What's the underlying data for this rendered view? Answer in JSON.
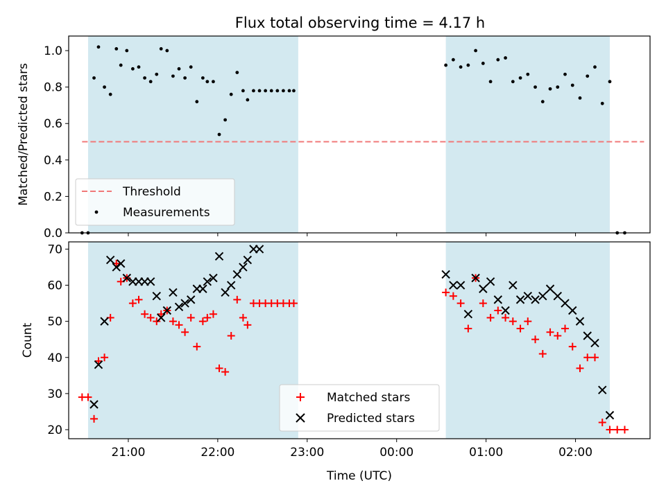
{
  "chart_data": [
    {
      "type": "scatter",
      "title": "Flux total observing time = 4.17 h",
      "ylabel": "Matched/Predicted stars",
      "xlabel": "",
      "xlim": [
        "20:20",
        "02:50"
      ],
      "ylim": [
        0,
        1.08
      ],
      "yticks": [
        0.0,
        0.2,
        0.4,
        0.6,
        0.8,
        1.0
      ],
      "ytick_labels": [
        "0.0",
        "0.2",
        "0.4",
        "0.6",
        "0.8",
        "1.0"
      ],
      "shaded_intervals": [
        [
          "20:33",
          "22:54"
        ],
        [
          "00:33",
          "02:23"
        ]
      ],
      "shade_color": "#d3e9f0",
      "threshold": {
        "name": "Threshold",
        "value": 0.5,
        "x_range": [
          "20:29",
          "02:46"
        ],
        "color": "#f07878"
      },
      "legend_position": "lower left",
      "series": [
        {
          "name": "Measurements",
          "color": "#000000",
          "x": [
            "20:29",
            "20:33",
            "20:37",
            "20:40",
            "20:44",
            "20:48",
            "20:52",
            "20:55",
            "20:59",
            "21:03",
            "21:07",
            "21:11",
            "21:15",
            "21:19",
            "21:22",
            "21:26",
            "21:30",
            "21:34",
            "21:38",
            "21:42",
            "21:46",
            "21:50",
            "21:53",
            "21:57",
            "22:01",
            "22:05",
            "22:09",
            "22:13",
            "22:17",
            "22:20",
            "22:24",
            "22:28",
            "22:32",
            "22:36",
            "22:40",
            "22:44",
            "22:48",
            "22:51",
            "00:33",
            "00:38",
            "00:43",
            "00:48",
            "00:53",
            "00:58",
            "01:03",
            "01:08",
            "01:13",
            "01:18",
            "01:23",
            "01:28",
            "01:33",
            "01:38",
            "01:43",
            "01:48",
            "01:53",
            "01:58",
            "02:03",
            "02:08",
            "02:13",
            "02:18",
            "02:23",
            "02:28",
            "02:33"
          ],
          "y": [
            0.0,
            0.0,
            0.85,
            1.02,
            0.8,
            0.76,
            1.01,
            0.92,
            1.0,
            0.9,
            0.91,
            0.85,
            0.83,
            0.87,
            1.01,
            1.0,
            0.86,
            0.9,
            0.85,
            0.91,
            0.72,
            0.85,
            0.83,
            0.83,
            0.54,
            0.62,
            0.76,
            0.88,
            0.78,
            0.73,
            0.78,
            0.78,
            0.78,
            0.78,
            0.78,
            0.78,
            0.78,
            0.78,
            0.92,
            0.95,
            0.91,
            0.92,
            1.0,
            0.93,
            0.83,
            0.95,
            0.96,
            0.83,
            0.85,
            0.87,
            0.8,
            0.72,
            0.79,
            0.8,
            0.87,
            0.81,
            0.74,
            0.86,
            0.91,
            0.71,
            0.83,
            0.0,
            0.0
          ]
        }
      ]
    },
    {
      "type": "scatter",
      "title": "",
      "ylabel": "Count",
      "xlabel": "Time (UTC)",
      "xlim": [
        "20:20",
        "02:50"
      ],
      "ylim": [
        17.5,
        72
      ],
      "yticks": [
        20,
        30,
        40,
        50,
        60,
        70
      ],
      "ytick_labels": [
        "20",
        "30",
        "40",
        "50",
        "60",
        "70"
      ],
      "xticks": [
        "21:00",
        "22:00",
        "23:00",
        "00:00",
        "01:00",
        "02:00"
      ],
      "shaded_intervals": [
        [
          "20:33",
          "22:54"
        ],
        [
          "00:33",
          "02:23"
        ]
      ],
      "shade_color": "#d3e9f0",
      "legend_position": "lower center",
      "series": [
        {
          "name": "Matched stars",
          "marker": "plus",
          "color": "#ff0000",
          "x": [
            "20:29",
            "20:33",
            "20:37",
            "20:40",
            "20:44",
            "20:48",
            "20:52",
            "20:55",
            "20:59",
            "21:03",
            "21:07",
            "21:11",
            "21:15",
            "21:19",
            "21:22",
            "21:26",
            "21:30",
            "21:34",
            "21:38",
            "21:42",
            "21:46",
            "21:50",
            "21:53",
            "21:57",
            "22:01",
            "22:05",
            "22:09",
            "22:13",
            "22:17",
            "22:20",
            "22:24",
            "22:28",
            "22:32",
            "22:36",
            "22:40",
            "22:44",
            "22:48",
            "22:51",
            "00:33",
            "00:38",
            "00:43",
            "00:48",
            "00:53",
            "00:58",
            "01:03",
            "01:08",
            "01:13",
            "01:18",
            "01:23",
            "01:28",
            "01:33",
            "01:38",
            "01:43",
            "01:48",
            "01:53",
            "01:58",
            "02:03",
            "02:08",
            "02:13",
            "02:18",
            "02:23",
            "02:28",
            "02:33"
          ],
          "y": [
            29,
            29,
            23,
            39,
            40,
            51,
            66,
            61,
            62,
            55,
            56,
            52,
            51,
            50,
            52,
            53,
            50,
            49,
            47,
            51,
            43,
            50,
            51,
            52,
            37,
            36,
            46,
            56,
            51,
            49,
            55,
            55,
            55,
            55,
            55,
            55,
            55,
            55,
            58,
            57,
            55,
            48,
            62,
            55,
            51,
            53,
            51,
            50,
            48,
            50,
            45,
            41,
            47,
            46,
            48,
            43,
            37,
            40,
            40,
            22,
            20,
            20,
            20
          ]
        },
        {
          "name": "Predicted stars",
          "marker": "x",
          "color": "#000000",
          "x": [
            "20:37",
            "20:40",
            "20:44",
            "20:48",
            "20:52",
            "20:55",
            "20:59",
            "21:03",
            "21:07",
            "21:11",
            "21:15",
            "21:19",
            "21:22",
            "21:26",
            "21:30",
            "21:34",
            "21:38",
            "21:42",
            "21:46",
            "21:50",
            "21:53",
            "21:57",
            "22:01",
            "22:05",
            "22:09",
            "22:13",
            "22:17",
            "22:20",
            "22:24",
            "22:28",
            "00:33",
            "00:38",
            "00:43",
            "00:48",
            "00:53",
            "00:58",
            "01:03",
            "01:08",
            "01:13",
            "01:18",
            "01:23",
            "01:28",
            "01:33",
            "01:38",
            "01:43",
            "01:48",
            "01:53",
            "01:58",
            "02:03",
            "02:08",
            "02:13",
            "02:18",
            "02:23"
          ],
          "y": [
            27,
            38,
            50,
            67,
            65,
            66,
            62,
            61,
            61,
            61,
            61,
            57,
            51,
            53,
            58,
            54,
            55,
            56,
            59,
            59,
            61,
            62,
            68,
            58,
            60,
            63,
            65,
            67,
            70,
            70,
            63,
            60,
            60,
            52,
            62,
            59,
            61,
            56,
            53,
            60,
            56,
            57,
            56,
            57,
            59,
            57,
            55,
            53,
            50,
            46,
            44,
            31,
            24
          ]
        }
      ]
    }
  ]
}
